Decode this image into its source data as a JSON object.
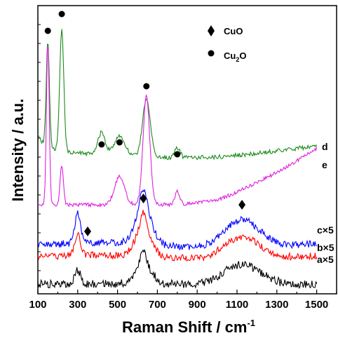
{
  "chart_data": {
    "type": "line",
    "xlabel": "Raman Shift / cm",
    "xlabel_sup": "-1",
    "ylabel": "Intensity / a.u.",
    "xlim": [
      100,
      1600
    ],
    "xticks": [
      "100",
      "300",
      "500",
      "700",
      "900",
      "1100",
      "1300",
      "1500"
    ],
    "y_tick_labels": false,
    "legend": [
      {
        "marker": "diamond",
        "label": "CuO"
      },
      {
        "marker": "circle",
        "label": "Cu",
        "sub": "2",
        "suffix": "O"
      }
    ],
    "series": [
      {
        "name": "d",
        "color": "#1a8a1a",
        "label": "d"
      },
      {
        "name": "e",
        "color": "#e020e0",
        "label": "e"
      },
      {
        "name": "c",
        "color": "#0000ff",
        "label": "c×5"
      },
      {
        "name": "b",
        "color": "#ff0000",
        "label": "b×5"
      },
      {
        "name": "a",
        "color": "#000000",
        "label": "a×5"
      }
    ],
    "peak_markers": {
      "cu2o_series_d": [
        150,
        220,
        420,
        510,
        645,
        800
      ],
      "cuo_series_c": [
        350,
        630,
        1125
      ]
    }
  }
}
